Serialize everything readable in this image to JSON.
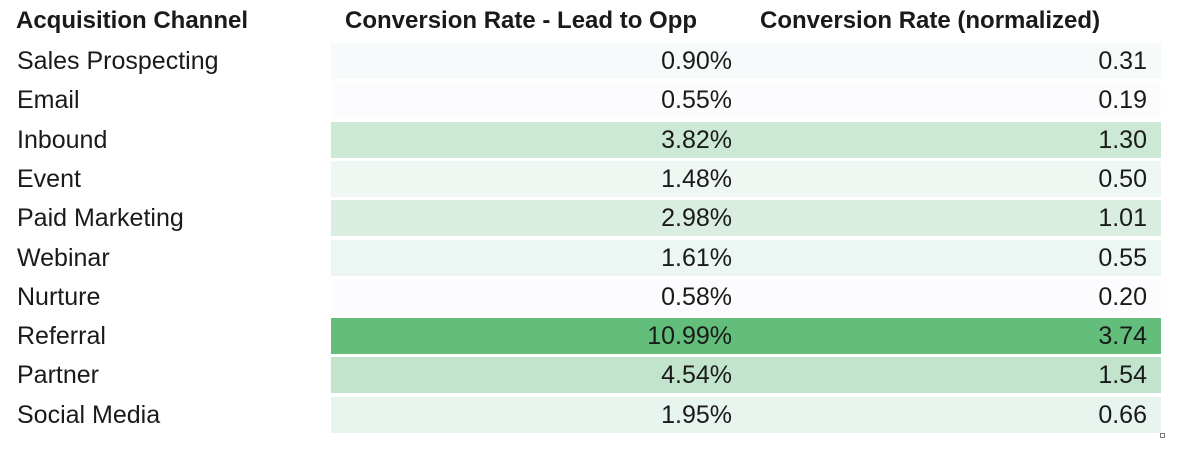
{
  "chart_data": {
    "type": "table",
    "columns": [
      "Acquisition Channel",
      "Conversion Rate - Lead to Opp",
      "Conversion Rate (normalized)"
    ],
    "rows": [
      {
        "channel": "Sales Prospecting",
        "rate": "0.90%",
        "normalized": "0.31",
        "normalized_value": 0.31
      },
      {
        "channel": "Email",
        "rate": "0.55%",
        "normalized": "0.19",
        "normalized_value": 0.19
      },
      {
        "channel": "Inbound",
        "rate": "3.82%",
        "normalized": "1.30",
        "normalized_value": 1.3
      },
      {
        "channel": "Event",
        "rate": "1.48%",
        "normalized": "0.50",
        "normalized_value": 0.5
      },
      {
        "channel": "Paid Marketing",
        "rate": "2.98%",
        "normalized": "1.01",
        "normalized_value": 1.01
      },
      {
        "channel": "Webinar",
        "rate": "1.61%",
        "normalized": "0.55",
        "normalized_value": 0.55
      },
      {
        "channel": "Nurture",
        "rate": "0.58%",
        "normalized": "0.20",
        "normalized_value": 0.2
      },
      {
        "channel": "Referral",
        "rate": "10.99%",
        "normalized": "3.74",
        "normalized_value": 3.74
      },
      {
        "channel": "Partner",
        "rate": "4.54%",
        "normalized": "1.54",
        "normalized_value": 1.54
      },
      {
        "channel": "Social Media",
        "rate": "1.95%",
        "normalized": "0.66",
        "normalized_value": 0.66
      }
    ],
    "color_scale": {
      "low": "#fcfcff",
      "high": "#63be7b"
    },
    "grid": false,
    "legend": "none"
  }
}
